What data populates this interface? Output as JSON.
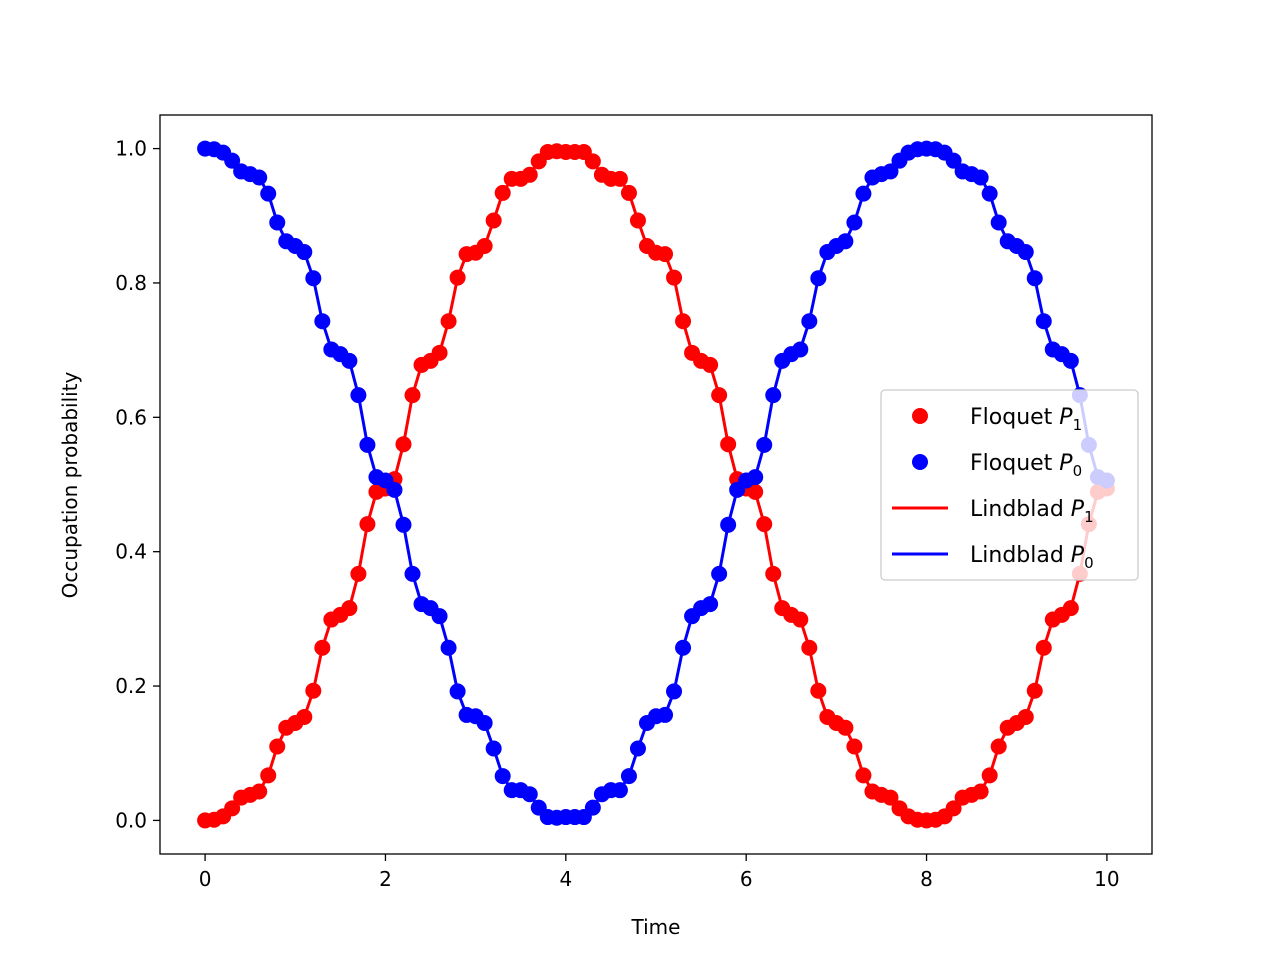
{
  "chart_data": {
    "type": "line",
    "xlabel": "Time",
    "ylabel": "Occupation probability",
    "xlim": [
      -0.5,
      10.5
    ],
    "ylim": [
      -0.05,
      1.05
    ],
    "xticks": [
      0,
      2,
      4,
      6,
      8,
      10
    ],
    "yticks": [
      0.0,
      0.2,
      0.4,
      0.6,
      0.8,
      1.0
    ],
    "xtick_labels": [
      "0",
      "2",
      "4",
      "6",
      "8",
      "10"
    ],
    "ytick_labels": [
      "0.0",
      "0.2",
      "0.4",
      "0.6",
      "0.8",
      "1.0"
    ],
    "grid": false,
    "legend_position": "center-right",
    "legend": [
      {
        "label_main": "Floquet ",
        "label_var": "P",
        "label_sub": "1",
        "marker": "dot",
        "color": "#ff0000"
      },
      {
        "label_main": "Floquet ",
        "label_var": "P",
        "label_sub": "0",
        "marker": "dot",
        "color": "#0000ff"
      },
      {
        "label_main": "Lindblad ",
        "label_var": "P",
        "label_sub": "1",
        "marker": "line",
        "color": "#ff0000"
      },
      {
        "label_main": "Lindblad ",
        "label_var": "P",
        "label_sub": "0",
        "marker": "line",
        "color": "#0000ff"
      }
    ],
    "x": [
      0.0,
      0.1,
      0.2,
      0.3,
      0.4,
      0.5,
      0.6,
      0.7,
      0.8,
      0.9,
      1.0,
      1.1,
      1.2,
      1.3,
      1.4,
      1.5,
      1.6,
      1.7,
      1.8,
      1.9,
      2.0,
      2.1,
      2.2,
      2.3,
      2.4,
      2.5,
      2.6,
      2.7,
      2.8,
      2.9,
      3.0,
      3.1,
      3.2,
      3.3,
      3.4,
      3.5,
      3.6,
      3.7,
      3.8,
      3.9,
      4.0,
      4.1,
      4.2,
      4.3,
      4.4,
      4.5,
      4.6,
      4.7,
      4.8,
      4.9,
      5.0,
      5.1,
      5.2,
      5.3,
      5.4,
      5.5,
      5.6,
      5.7,
      5.8,
      5.9,
      6.0,
      6.1,
      6.2,
      6.3,
      6.4,
      6.5,
      6.6,
      6.7,
      6.8,
      6.9,
      7.0,
      7.1,
      7.2,
      7.3,
      7.4,
      7.5,
      7.6,
      7.7,
      7.8,
      7.9,
      8.0,
      8.1,
      8.2,
      8.3,
      8.4,
      8.5,
      8.6,
      8.7,
      8.8,
      8.9,
      9.0,
      9.1,
      9.2,
      9.3,
      9.4,
      9.5,
      9.6,
      9.7,
      9.8,
      9.9,
      10.0
    ],
    "series": [
      {
        "name": "Floquet P1 / Lindblad P1",
        "color": "#ff0000",
        "values": [
          0.0,
          0.001,
          0.006,
          0.018,
          0.034,
          0.038,
          0.043,
          0.067,
          0.11,
          0.138,
          0.145,
          0.154,
          0.193,
          0.257,
          0.299,
          0.306,
          0.316,
          0.367,
          0.441,
          0.489,
          0.494,
          0.508,
          0.56,
          0.633,
          0.678,
          0.684,
          0.696,
          0.743,
          0.808,
          0.843,
          0.845,
          0.855,
          0.893,
          0.934,
          0.955,
          0.955,
          0.961,
          0.981,
          0.995,
          0.996,
          0.995,
          0.995,
          0.995,
          0.981,
          0.961,
          0.955,
          0.955,
          0.934,
          0.893,
          0.855,
          0.845,
          0.843,
          0.808,
          0.743,
          0.696,
          0.684,
          0.678,
          0.633,
          0.56,
          0.508,
          0.494,
          0.489,
          0.441,
          0.367,
          0.316,
          0.306,
          0.299,
          0.257,
          0.193,
          0.154,
          0.145,
          0.138,
          0.11,
          0.067,
          0.043,
          0.038,
          0.034,
          0.018,
          0.006,
          0.001,
          0.0,
          0.001,
          0.006,
          0.018,
          0.034,
          0.038,
          0.043,
          0.067,
          0.11,
          0.138,
          0.145,
          0.154,
          0.193,
          0.257,
          0.299,
          0.306,
          0.316,
          0.367,
          0.441,
          0.489,
          0.494
        ]
      },
      {
        "name": "Floquet P0 / Lindblad P0",
        "color": "#0000ff",
        "values": [
          1.0,
          0.999,
          0.994,
          0.982,
          0.966,
          0.962,
          0.957,
          0.933,
          0.89,
          0.862,
          0.855,
          0.846,
          0.807,
          0.743,
          0.701,
          0.694,
          0.684,
          0.633,
          0.559,
          0.511,
          0.506,
          0.492,
          0.44,
          0.367,
          0.322,
          0.316,
          0.304,
          0.257,
          0.192,
          0.157,
          0.155,
          0.145,
          0.107,
          0.066,
          0.045,
          0.045,
          0.039,
          0.019,
          0.005,
          0.004,
          0.005,
          0.005,
          0.005,
          0.019,
          0.039,
          0.045,
          0.045,
          0.066,
          0.107,
          0.145,
          0.155,
          0.157,
          0.192,
          0.257,
          0.304,
          0.316,
          0.322,
          0.367,
          0.44,
          0.492,
          0.506,
          0.511,
          0.559,
          0.633,
          0.684,
          0.694,
          0.701,
          0.743,
          0.807,
          0.846,
          0.855,
          0.862,
          0.89,
          0.933,
          0.957,
          0.962,
          0.966,
          0.982,
          0.994,
          0.999,
          1.0,
          0.999,
          0.994,
          0.982,
          0.966,
          0.962,
          0.957,
          0.933,
          0.89,
          0.862,
          0.855,
          0.846,
          0.807,
          0.743,
          0.701,
          0.694,
          0.684,
          0.633,
          0.559,
          0.511,
          0.506
        ]
      }
    ]
  }
}
